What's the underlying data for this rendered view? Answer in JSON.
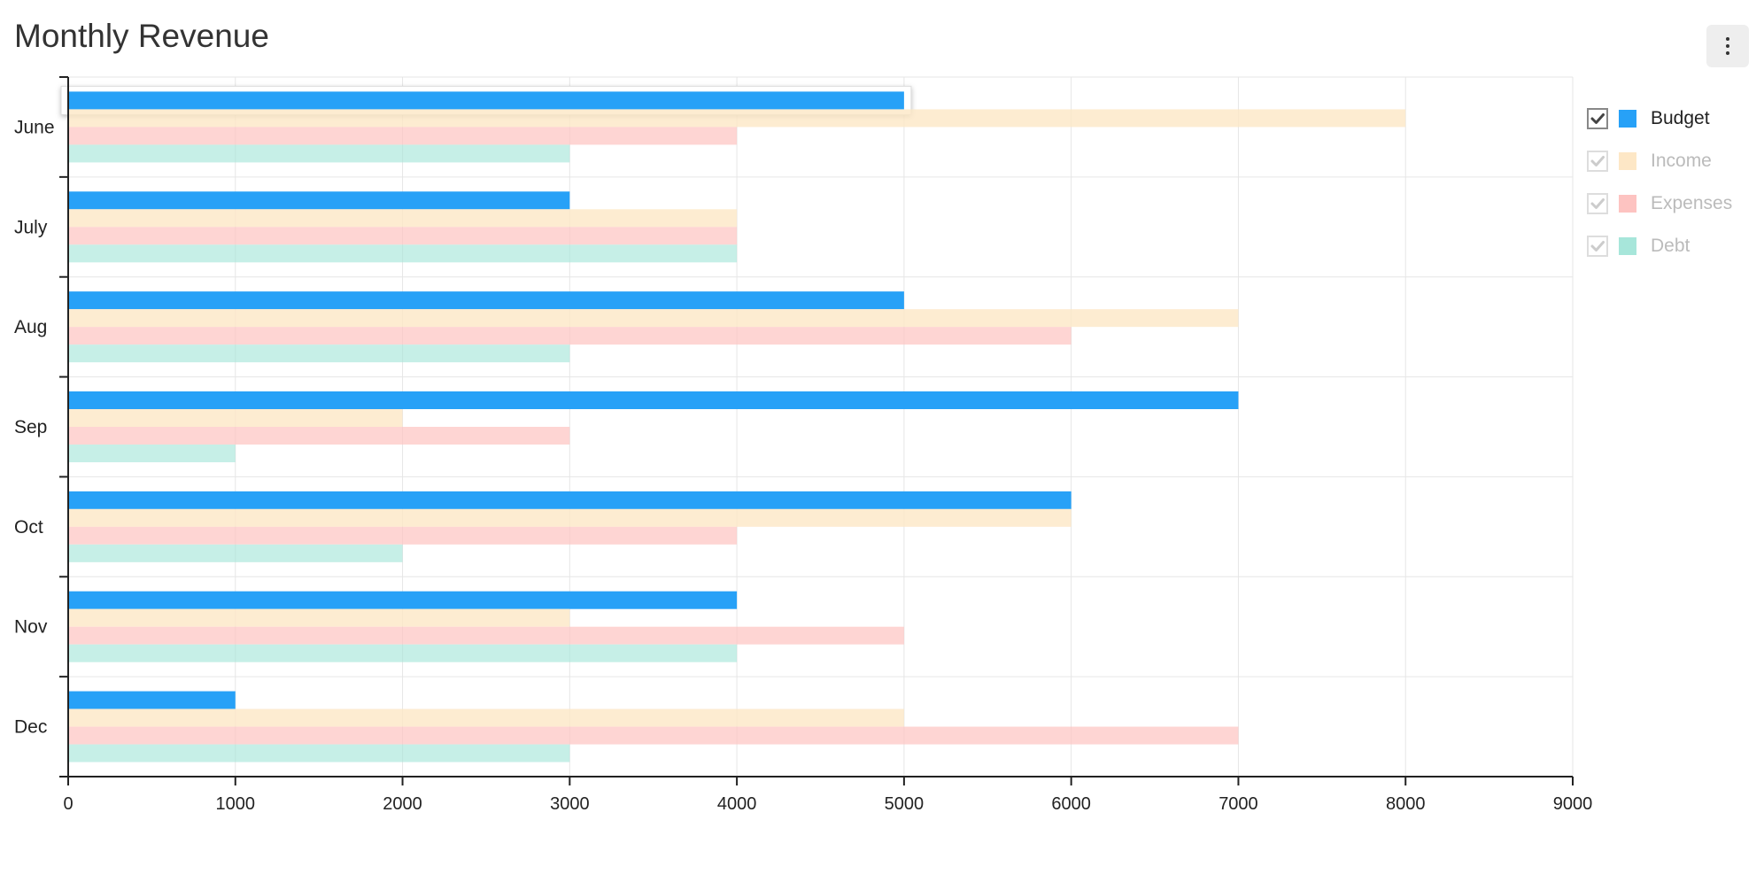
{
  "chart_data": {
    "type": "bar",
    "orientation": "horizontal",
    "title": "Monthly Revenue",
    "categories": [
      "June",
      "July",
      "Aug",
      "Sep",
      "Oct",
      "Nov",
      "Dec"
    ],
    "series": [
      {
        "name": "Budget",
        "values": [
          5000,
          3000,
          5000,
          7000,
          6000,
          4000,
          1000
        ],
        "color": "#27a1f7",
        "opacity": 1,
        "checked": true
      },
      {
        "name": "Income",
        "values": [
          8000,
          4000,
          7000,
          2000,
          6000,
          3000,
          5000
        ],
        "color": "#fde7c6",
        "opacity": 0.8,
        "checked": false
      },
      {
        "name": "Expenses",
        "values": [
          4000,
          4000,
          6000,
          3000,
          4000,
          5000,
          7000
        ],
        "color": "#fdc3c1",
        "opacity": 0.7,
        "checked": false
      },
      {
        "name": "Debt",
        "values": [
          3000,
          4000,
          3000,
          1000,
          2000,
          4000,
          3000
        ],
        "color": "#a7e6da",
        "opacity": 0.65,
        "checked": false
      }
    ],
    "xlim": [
      0,
      9000
    ],
    "xticks": [
      "0",
      "1000",
      "2000",
      "3000",
      "4000",
      "5000",
      "6000",
      "7000",
      "8000",
      "9000"
    ],
    "grid": true,
    "legend_position": "right",
    "highlighted_bar": {
      "series": "Budget",
      "category": "June"
    }
  },
  "menu": {
    "icon": "more-vertical-icon"
  },
  "legend": {
    "check_icon": "checkmark-icon"
  }
}
